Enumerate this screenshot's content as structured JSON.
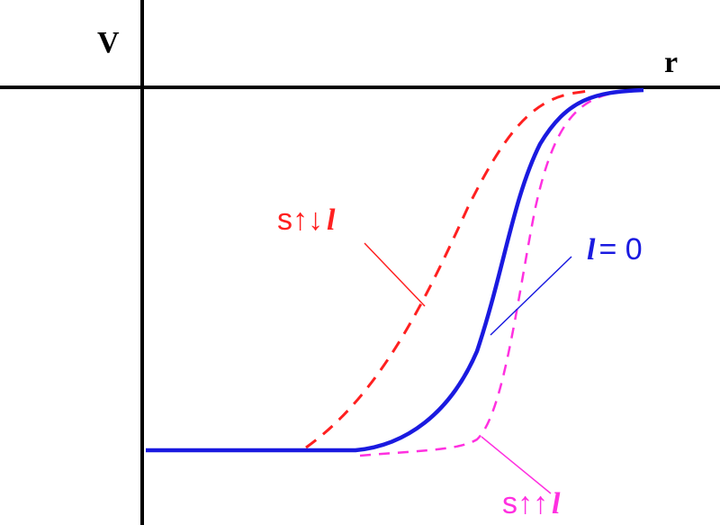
{
  "axes": {
    "y_label": "V",
    "x_label": "r"
  },
  "curves": [
    {
      "spin": "s↑↓",
      "orbital": "l"
    },
    {
      "orbital": "l",
      "relation": "= 0"
    },
    {
      "spin": "s↑↑",
      "orbital": "l"
    }
  ]
}
